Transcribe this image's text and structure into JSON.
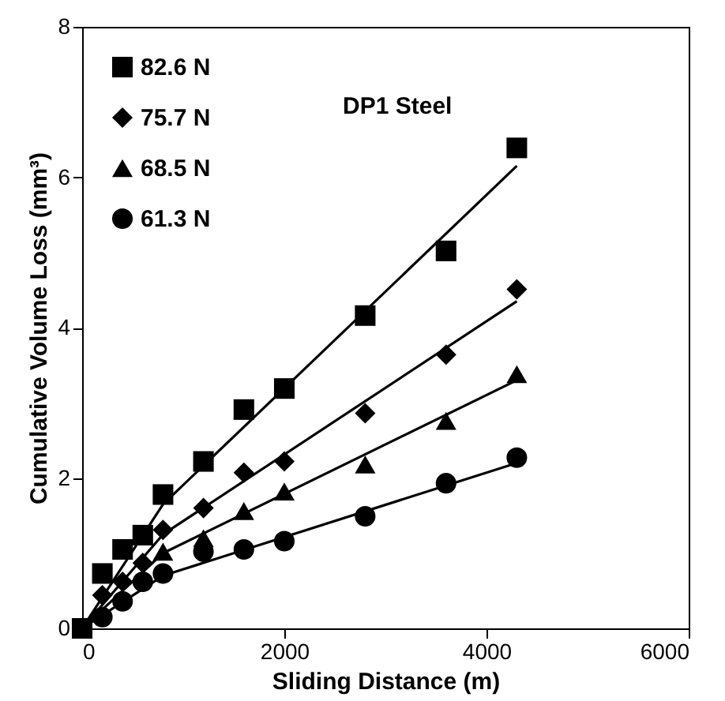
{
  "chart_data": {
    "type": "scatter",
    "xlabel": "Sliding Distance (m)",
    "ylabel": "Cumulative Volume Loss (mm³)",
    "xlim": [
      0,
      6000
    ],
    "ylim": [
      0,
      8
    ],
    "xticks": [
      0,
      2000,
      4000,
      6000
    ],
    "yticks": [
      0,
      2,
      4,
      6,
      8
    ],
    "grid": false,
    "legend": "top left",
    "annotations": [
      "DP1 Steel"
    ],
    "x": [
      0,
      200,
      400,
      600,
      800,
      1200,
      1600,
      2000,
      2800,
      3600,
      4300
    ],
    "series": [
      {
        "name": "82.6 N",
        "color": "#000000",
        "marker": "square",
        "values": [
          0,
          0.73,
          1.05,
          1.24,
          1.78,
          2.22,
          2.91,
          3.19,
          4.16,
          5.02,
          6.39
        ]
      },
      {
        "name": "75.7 N",
        "color": "#000000",
        "marker": "diamond",
        "values": [
          null,
          0.44,
          0.62,
          0.87,
          1.31,
          1.6,
          2.07,
          2.22,
          2.86,
          3.64,
          4.51
        ]
      },
      {
        "name": "68.5 N",
        "color": "#000000",
        "marker": "triangle",
        "values": [
          null,
          null,
          null,
          null,
          1.02,
          1.2,
          1.56,
          1.82,
          2.18,
          2.76,
          3.38
        ]
      },
      {
        "name": "61.3 N",
        "color": "#000000",
        "marker": "circle",
        "values": [
          null,
          0.15,
          0.36,
          0.62,
          0.73,
          1.02,
          1.05,
          1.16,
          1.49,
          1.93,
          2.27
        ]
      },
      {
        "type": "line",
        "color": "#000000",
        "x": [
          0,
          800,
          4300
        ],
        "values": [
          0,
          1.65,
          6.15
        ]
      },
      {
        "type": "line",
        "color": "#000000",
        "x": [
          0,
          800,
          4300
        ],
        "values": [
          0,
          1.25,
          4.35
        ]
      },
      {
        "type": "line",
        "color": "#000000",
        "x": [
          0,
          800,
          4300
        ],
        "values": [
          0,
          1.0,
          3.3
        ]
      },
      {
        "type": "line",
        "color": "#000000",
        "x": [
          0,
          800,
          4300
        ],
        "values": [
          0,
          0.7,
          2.2
        ]
      }
    ]
  }
}
